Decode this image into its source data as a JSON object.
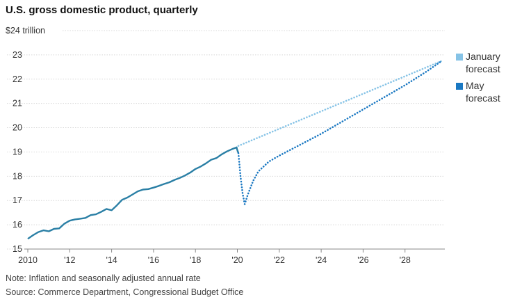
{
  "chart_data": {
    "type": "line",
    "title": "U.S. gross domestic product, quarterly",
    "y_unit_label": "$24 trillion",
    "ylim": [
      15,
      24
    ],
    "y_ticks": [
      15,
      16,
      17,
      18,
      19,
      20,
      21,
      22,
      23
    ],
    "xlim": [
      2010,
      2029.9
    ],
    "x_ticks": [
      {
        "value": 2010,
        "label": "2010"
      },
      {
        "value": 2012,
        "label": "'12"
      },
      {
        "value": 2014,
        "label": "'14"
      },
      {
        "value": 2016,
        "label": "'16"
      },
      {
        "value": 2018,
        "label": "'18"
      },
      {
        "value": 2020,
        "label": "'20"
      },
      {
        "value": 2022,
        "label": "'22"
      },
      {
        "value": 2024,
        "label": "'24"
      },
      {
        "value": 2026,
        "label": "'26"
      },
      {
        "value": 2028,
        "label": "'28"
      }
    ],
    "grid": true,
    "legend_position": "right",
    "series": [
      {
        "key": "actual",
        "color": "#2a7fa5",
        "style": "solid",
        "x": [
          2010.0,
          2010.25,
          2010.5,
          2010.75,
          2011.0,
          2011.25,
          2011.5,
          2011.75,
          2012.0,
          2012.25,
          2012.5,
          2012.75,
          2013.0,
          2013.25,
          2013.5,
          2013.75,
          2014.0,
          2014.25,
          2014.5,
          2014.75,
          2015.0,
          2015.25,
          2015.5,
          2015.75,
          2016.0,
          2016.25,
          2016.5,
          2016.75,
          2017.0,
          2017.25,
          2017.5,
          2017.75,
          2018.0,
          2018.25,
          2018.5,
          2018.75,
          2019.0,
          2019.25,
          2019.5,
          2019.75,
          2020.0
        ],
        "y": [
          15.42,
          15.57,
          15.7,
          15.77,
          15.73,
          15.83,
          15.85,
          16.05,
          16.17,
          16.22,
          16.25,
          16.28,
          16.4,
          16.43,
          16.53,
          16.65,
          16.6,
          16.8,
          17.03,
          17.12,
          17.25,
          17.38,
          17.45,
          17.47,
          17.53,
          17.6,
          17.68,
          17.75,
          17.85,
          17.93,
          18.03,
          18.15,
          18.3,
          18.4,
          18.53,
          18.68,
          18.75,
          18.9,
          19.02,
          19.12,
          19.2
        ]
      },
      {
        "key": "actual_drop",
        "color": "#2a7fa5",
        "style": "solid",
        "x": [
          2019.95,
          2020.05
        ],
        "y": [
          19.2,
          18.95
        ]
      },
      {
        "name": "January forecast",
        "color": "#86c3e6",
        "style": "dotted",
        "x": [
          2020.05,
          2029.75
        ],
        "y": [
          19.25,
          22.75
        ]
      },
      {
        "name": "May forecast",
        "color": "#1a78c2",
        "style": "dotted",
        "x": [
          2020.05,
          2020.15,
          2020.25,
          2020.35,
          2020.5,
          2020.75,
          2021.0,
          2021.5,
          2022.0,
          2023.0,
          2024.0,
          2025.0,
          2026.0,
          2027.0,
          2028.0,
          2029.0,
          2029.75
        ],
        "y": [
          18.95,
          18.0,
          17.3,
          16.85,
          17.25,
          17.8,
          18.2,
          18.6,
          18.85,
          19.3,
          19.75,
          20.25,
          20.75,
          21.25,
          21.75,
          22.3,
          22.75
        ]
      }
    ]
  },
  "legend": [
    {
      "line1": "January",
      "line2": "forecast",
      "color": "#86c3e6"
    },
    {
      "line1": "May",
      "line2": "forecast",
      "color": "#1a78c2"
    }
  ],
  "notes": {
    "note": "Note: Inflation and seasonally adjusted annual rate",
    "source": "Source: Commerce Department, Congressional Budget Office"
  }
}
